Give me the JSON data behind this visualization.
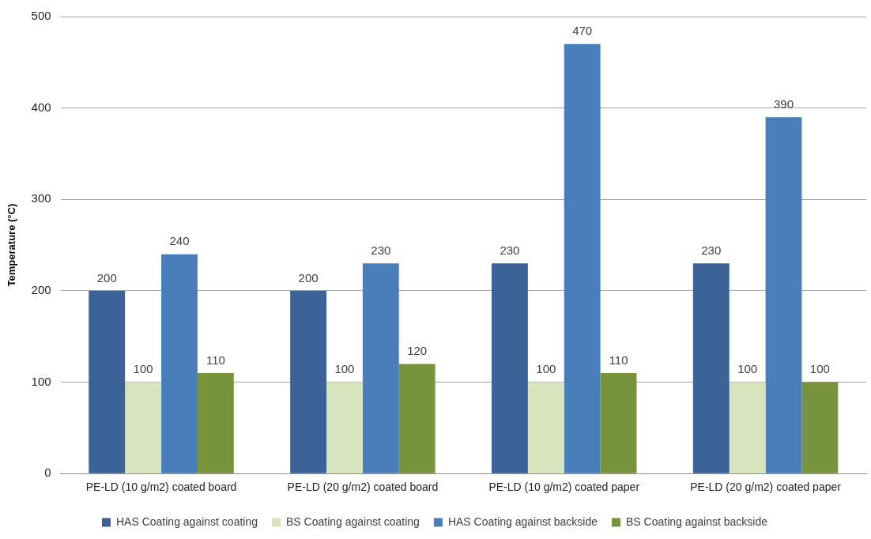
{
  "chart_data": {
    "type": "bar",
    "ylabel": "Temperature (°C)",
    "categories": [
      "PE-LD (10 g/m2) coated board",
      "PE-LD (20 g/m2) coated board",
      "PE-LD (10 g/m2) coated paper",
      "PE-LD (20 g/m2) coated paper"
    ],
    "series": [
      {
        "name": "HAS Coating against coating",
        "color": "#3b6397",
        "values": [
          200,
          200,
          230,
          230
        ]
      },
      {
        "name": "BS Coating against coating",
        "color": "#d7e4bd",
        "values": [
          100,
          100,
          100,
          100
        ]
      },
      {
        "name": "HAS Coating against backside",
        "color": "#4a7ebb",
        "values": [
          240,
          230,
          470,
          390
        ]
      },
      {
        "name": "BS Coating against backside",
        "color": "#77933c",
        "values": [
          110,
          120,
          110,
          100
        ]
      }
    ],
    "ylim": [
      0,
      500
    ],
    "yticks": [
      0,
      100,
      200,
      300,
      400,
      500
    ],
    "grid": "y",
    "legend": "bottom",
    "data_labels": true
  }
}
